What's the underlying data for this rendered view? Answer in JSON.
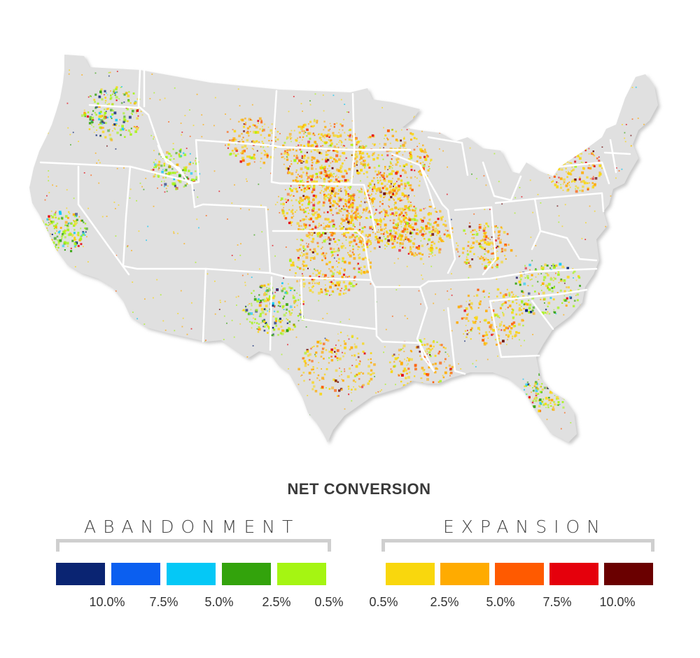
{
  "legend": {
    "title": "NET CONVERSION",
    "abandonment": {
      "label": "ABANDONMENT",
      "colors": [
        "#0a2472",
        "#0b5ff0",
        "#05c8f6",
        "#33a30c",
        "#a5f512"
      ],
      "ticks": [
        "10.0%",
        "7.5%",
        "5.0%",
        "2.5%",
        "0.5%"
      ]
    },
    "expansion": {
      "label": "EXPANSION",
      "colors": [
        "#f9d70d",
        "#ffab00",
        "#ff5a00",
        "#e5000c",
        "#6a0000"
      ],
      "ticks": [
        "0.5%",
        "2.5%",
        "5.0%",
        "7.5%",
        "10.0%"
      ]
    }
  },
  "map": {
    "land_color": "#e0e0e0",
    "border_color": "#ffffff"
  }
}
